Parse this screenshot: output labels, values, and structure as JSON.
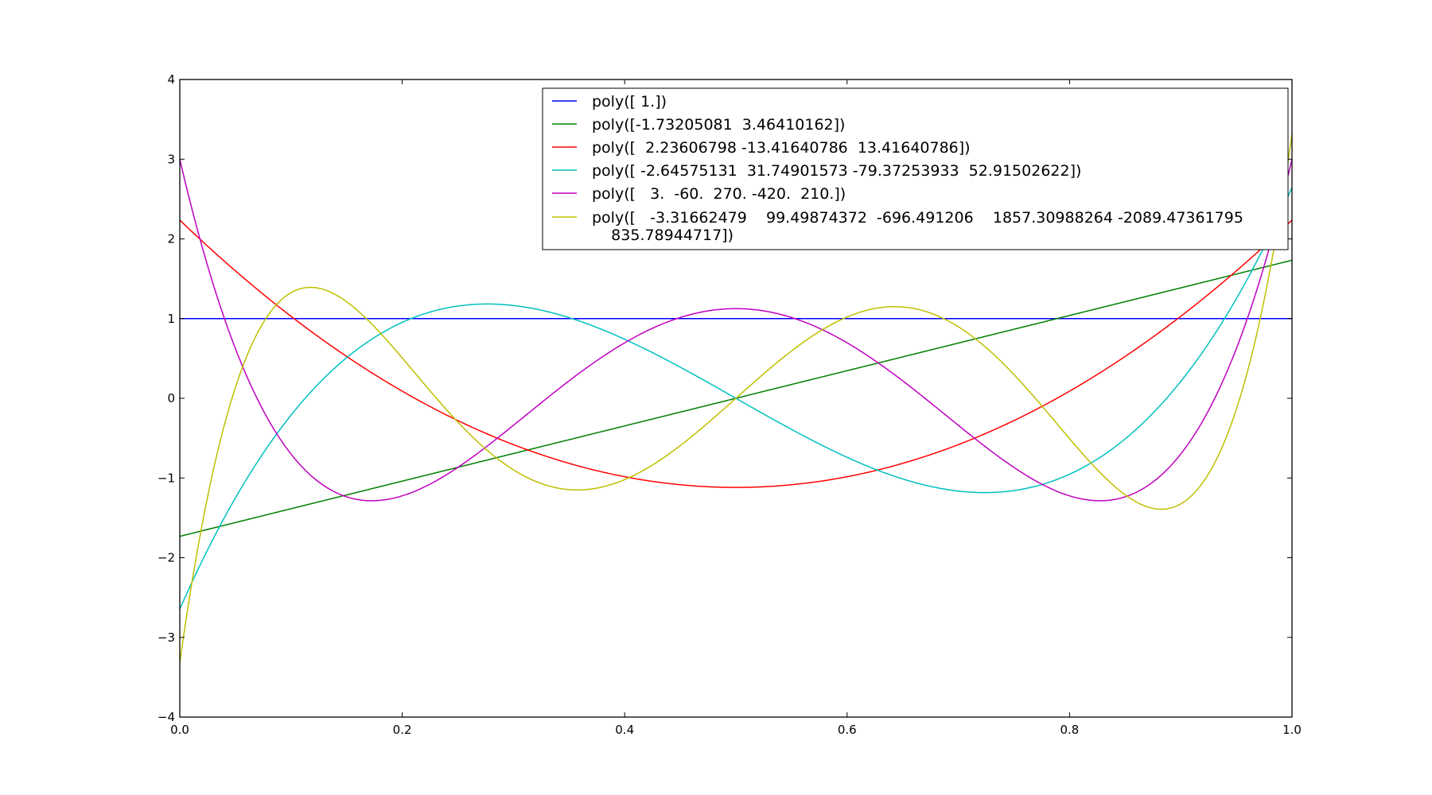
{
  "chart_data": {
    "type": "line",
    "title": "",
    "xlabel": "",
    "ylabel": "",
    "xlim": [
      0.0,
      1.0
    ],
    "ylim": [
      -4,
      4
    ],
    "grid": false,
    "legend_placement": "top-right",
    "x_ticks": [
      "0.0",
      "0.2",
      "0.4",
      "0.6",
      "0.8",
      "1.0"
    ],
    "x_tick_values": [
      0.0,
      0.2,
      0.4,
      0.6,
      0.8,
      1.0
    ],
    "y_ticks": [
      "−4",
      "−3",
      "−2",
      "−1",
      "0",
      "1",
      "2",
      "3",
      "4"
    ],
    "y_tick_values": [
      -4,
      -3,
      -2,
      -1,
      0,
      1,
      2,
      3,
      4
    ],
    "series": [
      {
        "name": "poly([ 1.])",
        "color": "#0000ff",
        "coefficients": [
          1
        ]
      },
      {
        "name": "poly([-1.73205081  3.46410162])",
        "color": "#008000",
        "coefficients": [
          -1.73205081,
          3.46410162
        ]
      },
      {
        "name": "poly([  2.23606798 -13.41640786  13.41640786])",
        "color": "#ff0000",
        "coefficients": [
          2.23606798,
          -13.41640786,
          13.41640786
        ]
      },
      {
        "name": "poly([ -2.64575131  31.74901573 -79.37253933  52.91502622])",
        "color": "#00bfbf",
        "coefficients": [
          -2.64575131,
          31.74901573,
          -79.37253933,
          52.91502622
        ]
      },
      {
        "name": "poly([   3.  -60.  270. -420.  210.])",
        "color": "#bf00bf",
        "coefficients": [
          3,
          -60,
          270,
          -420,
          210
        ]
      },
      {
        "name": "poly([   -3.31662479    99.49874372  -696.491206    1857.30988264 -2089.47361795",
        "name_line2": "    835.78944717])",
        "color": "#bfbf00",
        "coefficients": [
          -3.31662479,
          99.49874372,
          -696.491206,
          1857.30988264,
          -2089.47361795,
          835.78944717
        ]
      }
    ]
  }
}
